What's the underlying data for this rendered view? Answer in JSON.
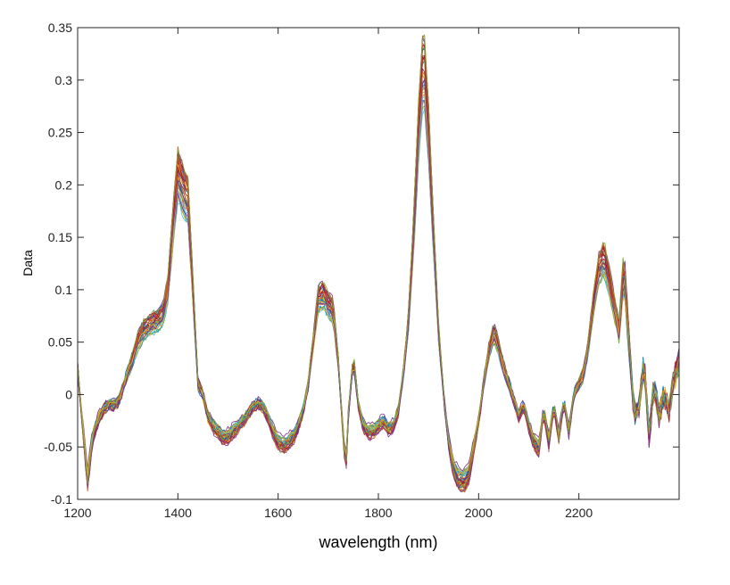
{
  "chart_data": {
    "type": "line",
    "title": "",
    "xlabel": "wavelength (nm)",
    "ylabel": "Data",
    "xlim": [
      1200,
      2400
    ],
    "ylim": [
      -0.1,
      0.35
    ],
    "x_ticks": [
      1200,
      1400,
      1600,
      1800,
      2000,
      2200
    ],
    "y_ticks": [
      -0.1,
      -0.05,
      0,
      0.05,
      0.1,
      0.15,
      0.2,
      0.25,
      0.3,
      0.35
    ],
    "x_tick_labels": [
      "1200",
      "1400",
      "1600",
      "1800",
      "2000",
      "2200"
    ],
    "y_tick_labels": [
      "-0.1",
      "-0.05",
      "0",
      "0.05",
      "0.1",
      "0.15",
      "0.2",
      "0.25",
      "0.3",
      "0.35"
    ],
    "grid": false,
    "legend": "none",
    "series_count": 40,
    "series_colors": [
      "#0072BD",
      "#D95319",
      "#EDB120",
      "#7E2F8E",
      "#77AC30",
      "#4DBEEE",
      "#A2142F"
    ],
    "mean_spectrum": {
      "x": [
        1200,
        1210,
        1220,
        1230,
        1240,
        1250,
        1260,
        1270,
        1280,
        1290,
        1300,
        1310,
        1320,
        1330,
        1340,
        1350,
        1360,
        1370,
        1380,
        1390,
        1400,
        1410,
        1420,
        1430,
        1440,
        1450,
        1460,
        1470,
        1480,
        1490,
        1500,
        1510,
        1520,
        1530,
        1540,
        1550,
        1560,
        1570,
        1580,
        1590,
        1600,
        1610,
        1620,
        1630,
        1640,
        1650,
        1660,
        1670,
        1680,
        1690,
        1700,
        1710,
        1720,
        1730,
        1735,
        1740,
        1750,
        1760,
        1770,
        1780,
        1790,
        1800,
        1810,
        1820,
        1830,
        1840,
        1850,
        1860,
        1870,
        1880,
        1890,
        1900,
        1910,
        1920,
        1930,
        1940,
        1950,
        1960,
        1970,
        1980,
        1990,
        2000,
        2010,
        2020,
        2030,
        2040,
        2050,
        2060,
        2070,
        2080,
        2090,
        2100,
        2110,
        2120,
        2130,
        2140,
        2150,
        2160,
        2170,
        2180,
        2190,
        2200,
        2210,
        2220,
        2230,
        2240,
        2250,
        2260,
        2270,
        2280,
        2290,
        2300,
        2310,
        2320,
        2330,
        2340,
        2350,
        2360,
        2370,
        2380,
        2390,
        2400
      ],
      "y": [
        0.025,
        -0.03,
        -0.08,
        -0.04,
        -0.025,
        -0.015,
        -0.01,
        -0.01,
        -0.008,
        0.005,
        0.02,
        0.035,
        0.05,
        0.06,
        0.065,
        0.068,
        0.07,
        0.075,
        0.1,
        0.16,
        0.21,
        0.195,
        0.185,
        0.1,
        0.01,
        0.0,
        -0.02,
        -0.03,
        -0.035,
        -0.04,
        -0.04,
        -0.035,
        -0.03,
        -0.025,
        -0.018,
        -0.012,
        -0.008,
        -0.012,
        -0.022,
        -0.035,
        -0.045,
        -0.048,
        -0.045,
        -0.04,
        -0.03,
        -0.015,
        0.01,
        0.05,
        0.09,
        0.095,
        0.085,
        0.08,
        0.03,
        -0.04,
        -0.07,
        -0.02,
        0.035,
        -0.01,
        -0.03,
        -0.035,
        -0.035,
        -0.03,
        -0.025,
        -0.032,
        -0.03,
        -0.015,
        0.02,
        0.07,
        0.15,
        0.25,
        0.32,
        0.25,
        0.15,
        0.06,
        0.0,
        -0.045,
        -0.07,
        -0.08,
        -0.082,
        -0.075,
        -0.05,
        -0.025,
        0.01,
        0.04,
        0.06,
        0.045,
        0.025,
        0.01,
        -0.005,
        -0.02,
        -0.01,
        -0.03,
        -0.045,
        -0.05,
        -0.015,
        -0.045,
        -0.01,
        -0.04,
        -0.005,
        -0.035,
        0.0,
        0.01,
        0.02,
        0.05,
        0.09,
        0.12,
        0.13,
        0.11,
        0.085,
        0.06,
        0.12,
        0.05,
        -0.02,
        -0.01,
        0.03,
        -0.04,
        0.01,
        -0.02,
        0.0,
        -0.015,
        0.015,
        0.03
      ]
    }
  }
}
